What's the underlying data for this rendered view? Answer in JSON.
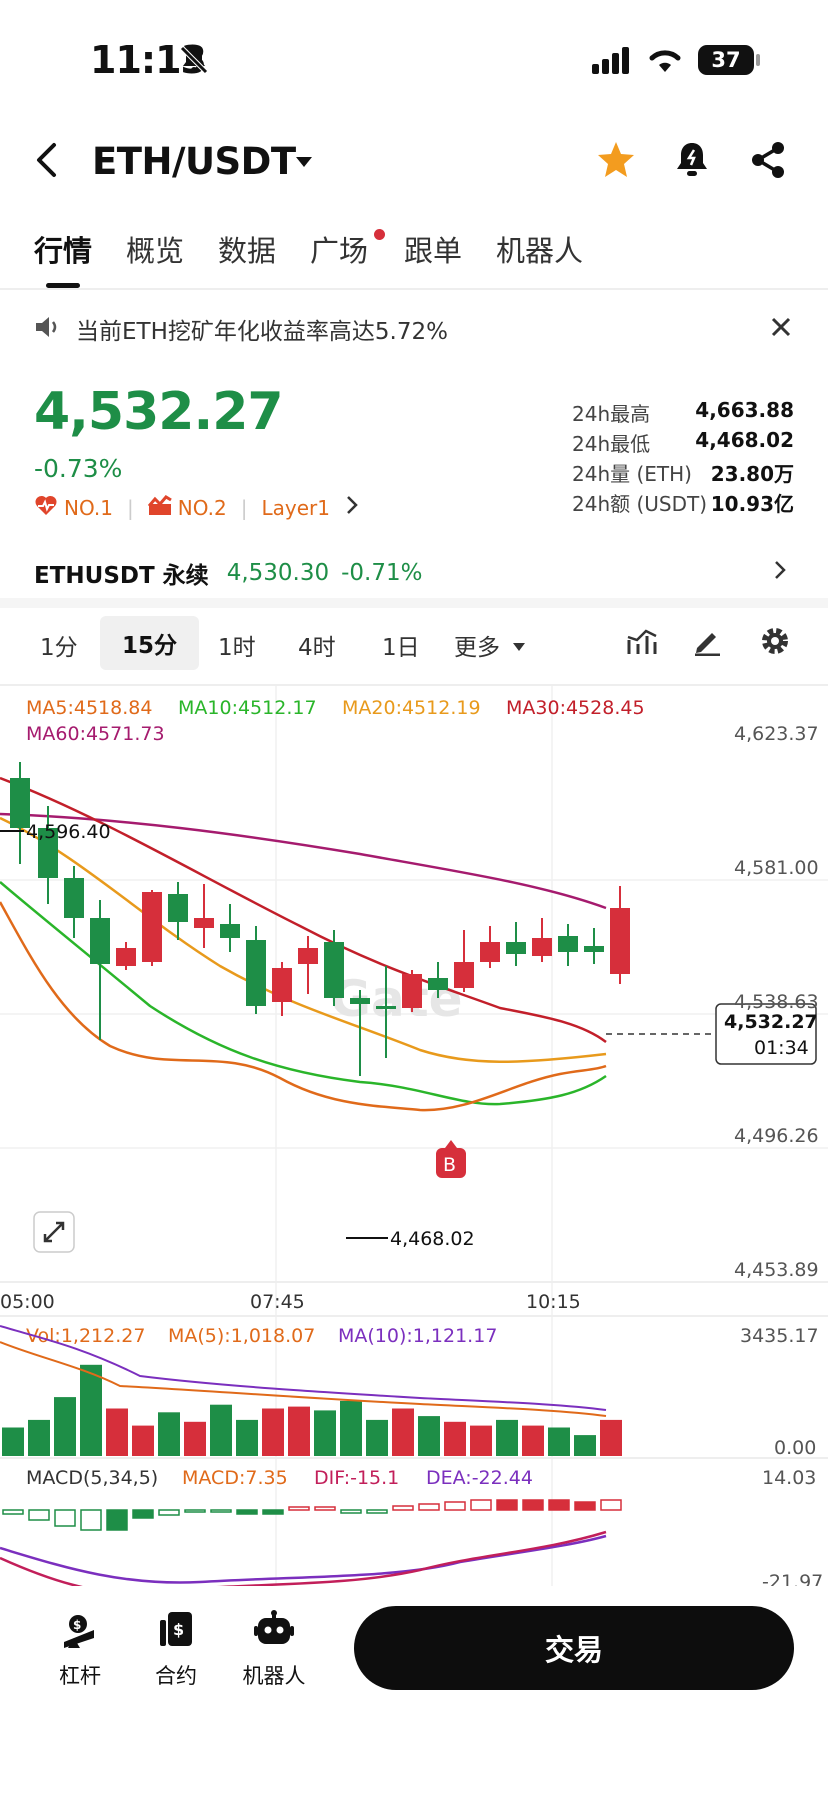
{
  "status_bar": {
    "time": "11:13",
    "battery": "37"
  },
  "header": {
    "pair": "ETH/USDT"
  },
  "tabs": [
    {
      "label": "行情"
    },
    {
      "label": "概览"
    },
    {
      "label": "数据"
    },
    {
      "label": "广场"
    },
    {
      "label": "跟单"
    },
    {
      "label": "机器人"
    }
  ],
  "announcement": {
    "text": "当前ETH挖矿年化收益率高达5.72%"
  },
  "price": {
    "last": "4,532.27",
    "change": "-0.73%",
    "tags": [
      "NO.1",
      "NO.2",
      "Layer1"
    ],
    "stats": [
      {
        "label": "24h最高",
        "value": "4,663.88"
      },
      {
        "label": "24h最低",
        "value": "4,468.02"
      },
      {
        "label": "24h量 (ETH)",
        "value": "23.80万"
      },
      {
        "label": "24h额 (USDT)",
        "value": "10.93亿"
      }
    ]
  },
  "perpetual": {
    "name": "ETHUSDT 永续",
    "price": "4,530.30",
    "change": "-0.71%"
  },
  "intervals": [
    "1分",
    "15分",
    "1时",
    "4时",
    "1日",
    "更多"
  ],
  "chart": {
    "watermark": "Gate",
    "ma_legend": {
      "ma5": "MA5:4518.84",
      "ma10": "MA10:4512.17",
      "ma20": "MA20:4512.19",
      "ma30": "MA30:4528.45",
      "ma60": "MA60:4571.73"
    },
    "y_labels": [
      "4,623.37",
      "4,581.00",
      "4,538.63",
      "4,496.26",
      "4,453.89"
    ],
    "x_labels": [
      "05:00",
      "07:45",
      "10:15"
    ],
    "high_marker": "4,596.40",
    "low_marker": "4,468.02",
    "price_box": {
      "price": "4,532.27",
      "countdown": "01:34"
    },
    "buy_marker": "B",
    "colors": {
      "up": "#d62f3b",
      "down": "#1e8e47"
    },
    "vol_legend": {
      "vol": "Vol:1,212.27",
      "ma5": "MA(5):1,018.07",
      "ma10": "MA(10):1,121.17"
    },
    "vol_y_labels": [
      "3435.17",
      "0.00"
    ],
    "macd_legend": {
      "name": "MACD(5,34,5)",
      "macd": "MACD:7.35",
      "dif": "DIF:-15.1",
      "dea": "DEA:-22.44"
    },
    "macd_y_labels": [
      "14.03",
      "-21.97"
    ]
  },
  "bottom_nav": {
    "items": [
      {
        "label": "杠杆"
      },
      {
        "label": "合约"
      },
      {
        "label": "机器人"
      }
    ],
    "trade_button": "交易"
  }
}
